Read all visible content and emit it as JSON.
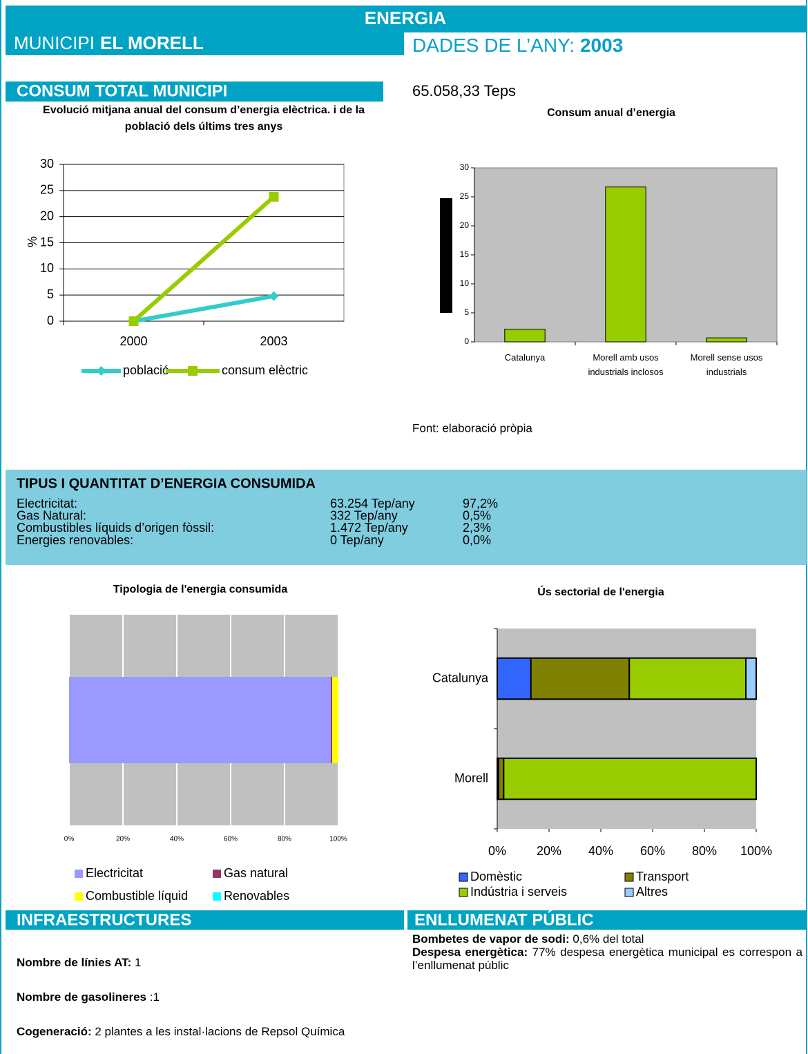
{
  "header": {
    "title": "ENERGIA",
    "municipi_label": "MUNICIPI",
    "municipi": "EL MORELL",
    "year_label": "DADES DE L’ANY:",
    "year": "2003"
  },
  "consum": {
    "title": "CONSUM TOTAL MUNICIPI",
    "total": "65.058,33 Teps",
    "source": "Font: elaboració pròpia"
  },
  "table": {
    "title": "TIPUS I QUANTITAT D’ENERGIA CONSUMIDA",
    "rows": [
      [
        "Electricitat:",
        "63.254 Tep/any",
        "97,2%"
      ],
      [
        "Gas Natural:",
        "332 Tep/any",
        "0,5%"
      ],
      [
        "Combustibles líquids d’origen fòssil:",
        "1.472 Tep/any",
        "2,3%"
      ],
      [
        "Energies renovables:",
        "0 Tep/any",
        "0,0%"
      ]
    ]
  },
  "chart_data": [
    {
      "type": "line",
      "title": "Evolució mitjana anual del consum d’energia elèctrica. i de la població dels últims tres anys",
      "y_label": "%",
      "categories": [
        "2000",
        "2003"
      ],
      "series": [
        {
          "name": "població",
          "color": "#33cccc",
          "marker": "diamond",
          "values": [
            0,
            4.8
          ]
        },
        {
          "name": "consum elèctric",
          "color": "#99cc00",
          "marker": "square",
          "values": [
            0,
            23.8
          ]
        }
      ],
      "ylim": [
        0,
        30
      ],
      "yticks": [
        0,
        5,
        10,
        15,
        20,
        25,
        30
      ],
      "grid": true,
      "legend": "bottom"
    },
    {
      "type": "bar",
      "title": "Consum anual d’energia",
      "categories": [
        "Catalunya",
        "Morell amb usos industrials inclosos",
        "Morell sense usos industrials"
      ],
      "values": [
        2.2,
        26.7,
        0.7
      ],
      "color": "#99cc00",
      "edgecolor": "#000000",
      "ylim": [
        0,
        30
      ],
      "yticks": [
        0,
        5,
        10,
        15,
        20,
        25,
        30
      ],
      "grid": false
    },
    {
      "type": "bar",
      "orientation": "horizontal",
      "stacked": true,
      "title": "Tipologia de l'energia consumida",
      "categories": [
        null
      ],
      "series": [
        {
          "name": "Electricitat",
          "color": "#9999ff",
          "values": [
            97.2
          ]
        },
        {
          "name": "Gas natural",
          "color": "#993366",
          "values": [
            0.5
          ]
        },
        {
          "name": "Combustible líquid",
          "color": "#ffff00",
          "values": [
            2.3
          ]
        },
        {
          "name": "Renovables",
          "color": "#00ffff",
          "values": [
            0.0
          ]
        }
      ],
      "xlim": [
        0,
        100
      ],
      "xticks": [
        {
          "value": 0,
          "label": "0%"
        },
        {
          "value": 20,
          "label": "20%"
        },
        {
          "value": 40,
          "label": "40%"
        },
        {
          "value": 60,
          "label": "60%"
        },
        {
          "value": 80,
          "label": "80%"
        },
        {
          "value": 100,
          "label": "100%"
        }
      ],
      "grid": true,
      "legend": "bottom"
    },
    {
      "type": "bar",
      "orientation": "horizontal",
      "stacked": true,
      "title": "Ús sectorial de l'energia",
      "categories": [
        "Catalunya",
        "Morell"
      ],
      "edgecolor": "#000000",
      "series": [
        {
          "name": "Domèstic",
          "color": "#3366ff",
          "values": [
            13,
            0.5
          ]
        },
        {
          "name": "Transport",
          "color": "#808000",
          "values": [
            38,
            2
          ]
        },
        {
          "name": "Indústria i serveis",
          "color": "#99cc00",
          "values": [
            45,
            97.5
          ]
        },
        {
          "name": "Altres",
          "color": "#99ccff",
          "values": [
            4,
            0
          ]
        }
      ],
      "xlim": [
        0,
        100
      ],
      "xticks": [
        {
          "value": 0,
          "label": "0%"
        },
        {
          "value": 20,
          "label": "20%"
        },
        {
          "value": 40,
          "label": "40%"
        },
        {
          "value": 60,
          "label": "60%"
        },
        {
          "value": 80,
          "label": "80%"
        },
        {
          "value": 100,
          "label": "100%"
        }
      ],
      "grid": false,
      "legend": "bottom"
    }
  ],
  "infraestructures": {
    "title": "INFRAESTRUCTURES",
    "items": [
      {
        "label": "Nombre de línies AT:",
        "value": "1"
      },
      {
        "label": "Nombre de gasolineres",
        "value": ":1"
      },
      {
        "label": "Cogeneració:",
        "value": "2 plantes a les instal·lacions de Repsol Química"
      }
    ]
  },
  "enllumenat": {
    "title": "ENLLUMENAT PÚBLIC",
    "items": [
      {
        "label": "Bombetes de vapor de sodi:",
        "value": "0,6% del total"
      },
      {
        "label": "Despesa energètica:",
        "value": "77% despesa energètica municipal es correspon a l’enllumenat públic"
      }
    ]
  }
}
